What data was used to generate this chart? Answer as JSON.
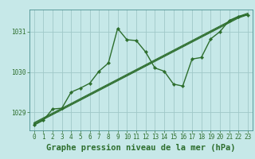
{
  "bg_color": "#c6e8e8",
  "grid_color": "#a0c8c8",
  "line_color": "#2d6e2d",
  "title": "Graphe pression niveau de la mer (hPa)",
  "xlim": [
    -0.5,
    23.5
  ],
  "ylim": [
    1028.55,
    1031.55
  ],
  "yticks": [
    1029,
    1030,
    1031
  ],
  "xticks": [
    0,
    1,
    2,
    3,
    4,
    5,
    6,
    7,
    8,
    9,
    10,
    11,
    12,
    13,
    14,
    15,
    16,
    17,
    18,
    19,
    20,
    21,
    22,
    23
  ],
  "straight_lines": [
    [
      1028.7,
      1028.82,
      1028.94,
      1029.06,
      1029.18,
      1029.3,
      1029.42,
      1029.54,
      1029.66,
      1029.78,
      1029.9,
      1030.02,
      1030.14,
      1030.26,
      1030.38,
      1030.5,
      1030.62,
      1030.74,
      1030.86,
      1030.98,
      1031.1,
      1031.22,
      1031.34,
      1031.42
    ],
    [
      1028.72,
      1028.84,
      1028.96,
      1029.08,
      1029.2,
      1029.32,
      1029.44,
      1029.56,
      1029.68,
      1029.8,
      1029.92,
      1030.04,
      1030.16,
      1030.28,
      1030.4,
      1030.52,
      1030.64,
      1030.76,
      1030.88,
      1031.0,
      1031.12,
      1031.24,
      1031.36,
      1031.44
    ],
    [
      1028.74,
      1028.86,
      1028.98,
      1029.1,
      1029.22,
      1029.34,
      1029.46,
      1029.58,
      1029.7,
      1029.82,
      1029.94,
      1030.06,
      1030.18,
      1030.3,
      1030.42,
      1030.54,
      1030.66,
      1030.78,
      1030.9,
      1031.02,
      1031.14,
      1031.26,
      1031.38,
      1031.46
    ]
  ],
  "wavy_line": {
    "x": [
      0,
      1,
      2,
      3,
      4,
      5,
      6,
      7,
      8,
      9,
      10,
      11,
      12,
      13,
      14,
      15,
      16,
      17,
      18,
      19,
      20,
      21,
      22,
      23
    ],
    "y": [
      1028.68,
      1028.8,
      1029.08,
      1029.1,
      1029.5,
      1029.6,
      1029.72,
      1030.02,
      1030.22,
      1031.08,
      1030.8,
      1030.78,
      1030.5,
      1030.1,
      1030.02,
      1029.7,
      1029.65,
      1030.32,
      1030.36,
      1030.82,
      1031.0,
      1031.28,
      1031.38,
      1031.42
    ]
  },
  "title_fontsize": 7.5,
  "tick_fontsize": 5.5,
  "title_color": "#2d6e2d",
  "tick_color": "#2d6e2d",
  "spine_color": "#4a9090"
}
